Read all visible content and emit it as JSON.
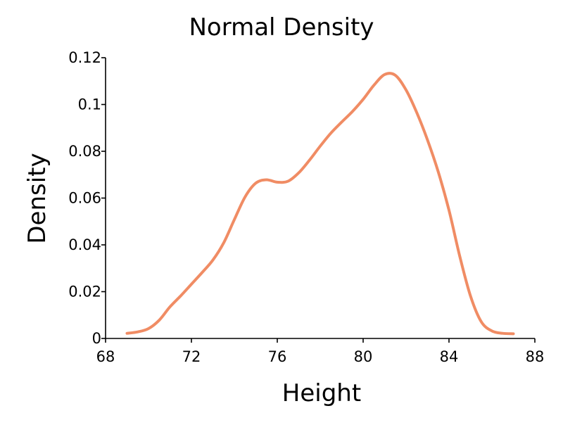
{
  "chart_data": {
    "type": "line",
    "title": "Normal Density",
    "xlabel": "Height",
    "ylabel": "Density",
    "xlim": [
      68,
      88
    ],
    "ylim": [
      0,
      0.12
    ],
    "xticks": [
      68,
      72,
      76,
      80,
      84,
      88
    ],
    "xtick_labels": [
      "68",
      "72",
      "76",
      "80",
      "84",
      "88"
    ],
    "yticks": [
      0,
      0.02,
      0.04,
      0.06,
      0.08,
      0.1,
      0.12
    ],
    "ytick_labels": [
      "0",
      "0.02",
      "0.04",
      "0.06",
      "0.08",
      "0.1",
      "0.12"
    ],
    "grid": false,
    "legend": "none",
    "series": [
      {
        "color": "#f08c64",
        "x": [
          69,
          69.5,
          70,
          70.5,
          71,
          71.5,
          72,
          72.5,
          73,
          73.5,
          74,
          74.5,
          75,
          75.5,
          76,
          76.5,
          77,
          77.5,
          78,
          78.5,
          79,
          79.5,
          80,
          80.5,
          81,
          81.5,
          82,
          82.5,
          83,
          83.5,
          84,
          84.5,
          85,
          85.5,
          86,
          86.5,
          87
        ],
        "y": [
          0.0022,
          0.0028,
          0.0042,
          0.0078,
          0.0135,
          0.0182,
          0.0232,
          0.0282,
          0.0335,
          0.0408,
          0.0508,
          0.0605,
          0.0664,
          0.0678,
          0.0668,
          0.0672,
          0.0708,
          0.0762,
          0.0822,
          0.0878,
          0.0925,
          0.097,
          0.1022,
          0.1082,
          0.1128,
          0.1125,
          0.1062,
          0.0965,
          0.0848,
          0.0712,
          0.0548,
          0.0352,
          0.0182,
          0.0072,
          0.0032,
          0.0022,
          0.002
        ]
      }
    ]
  }
}
